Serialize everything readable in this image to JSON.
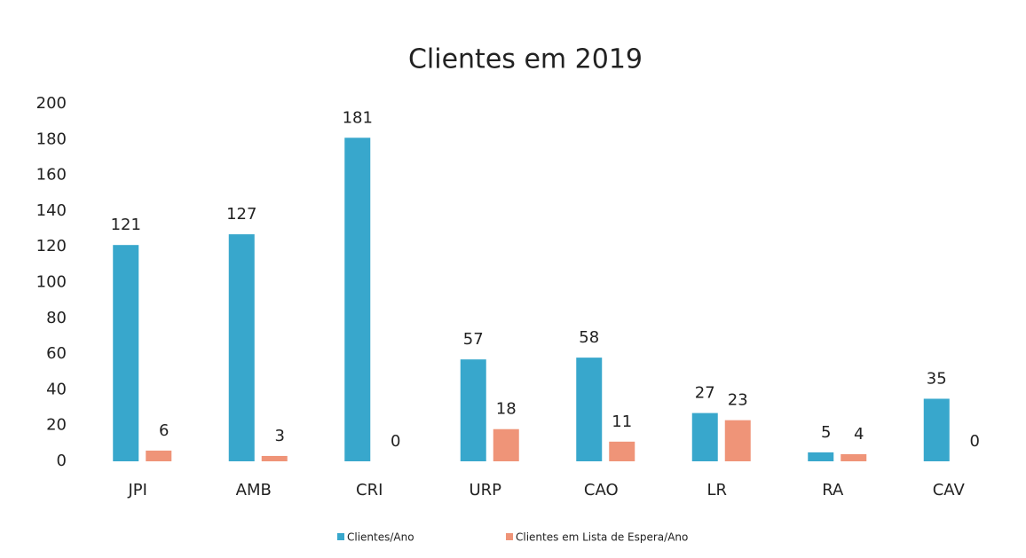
{
  "chart_data": {
    "type": "bar",
    "title": "Clientes em 2019",
    "categories": [
      "JPI",
      "AMB",
      "CRI",
      "URP",
      "CAO",
      "LR",
      "RA",
      "CAV"
    ],
    "series": [
      {
        "name": "Clientes/Ano",
        "color": "#38a7cc",
        "values": [
          121,
          127,
          181,
          57,
          58,
          27,
          5,
          35
        ]
      },
      {
        "name": "Clientes em Lista de Espera/Ano",
        "color": "#ef9478",
        "values": [
          6,
          3,
          0,
          18,
          11,
          23,
          4,
          0
        ]
      }
    ],
    "ylim": [
      0,
      200
    ],
    "yticks": [
      0,
      20,
      40,
      60,
      80,
      100,
      120,
      140,
      160,
      180,
      200
    ],
    "grid": false,
    "legend": "bottom"
  }
}
